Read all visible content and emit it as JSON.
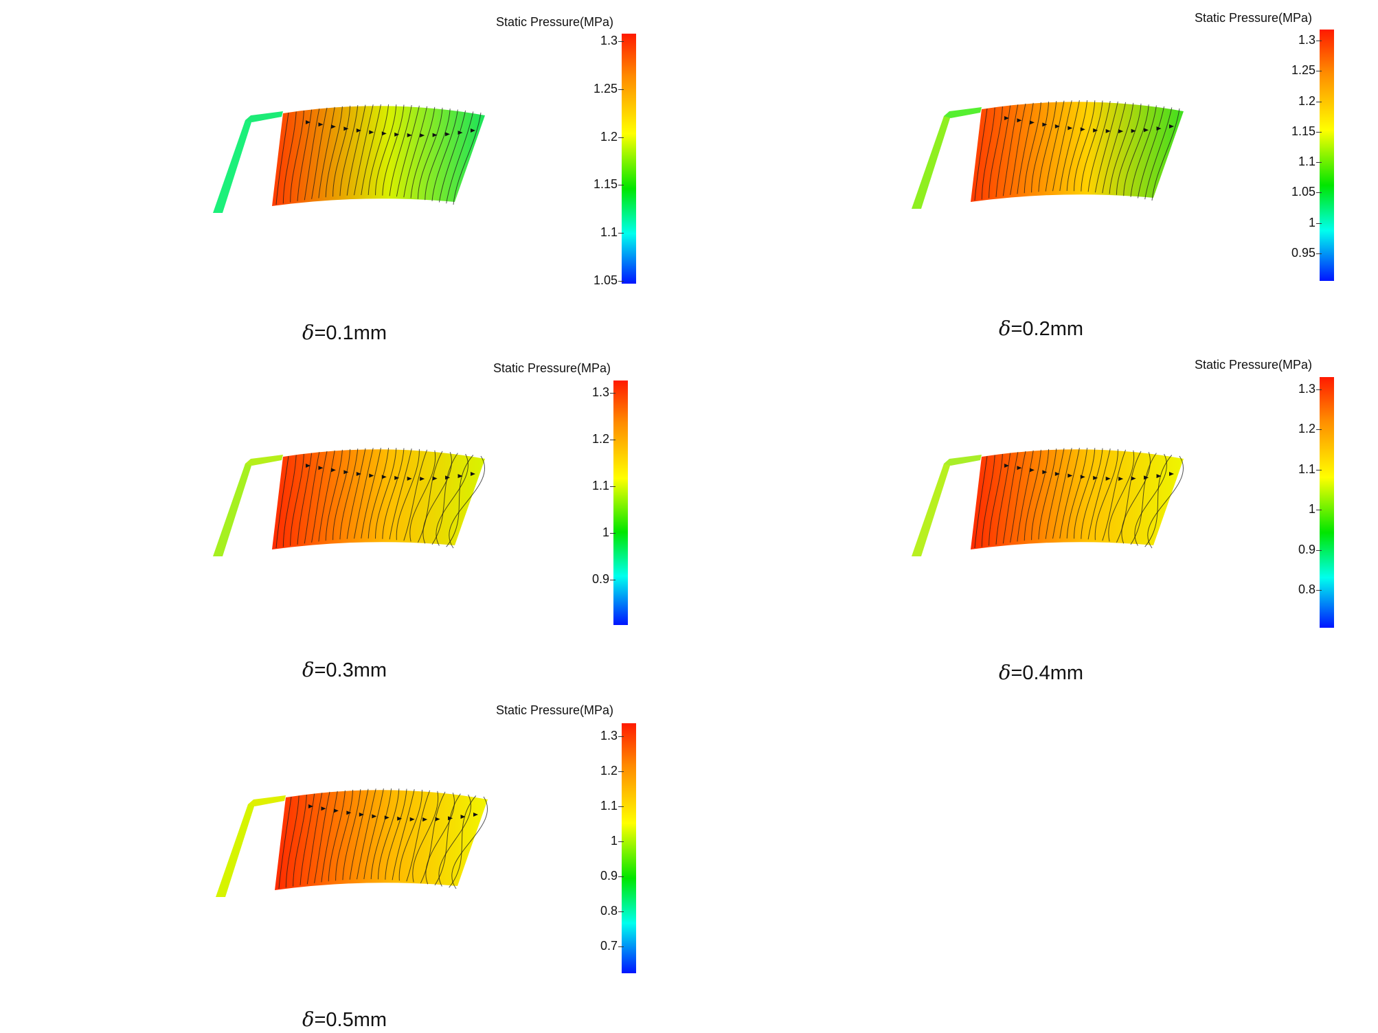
{
  "panels": [
    {
      "caption_symbol": "δ",
      "caption_value": "=0.1mm",
      "colorbar_title": "Static Pressure(MPa)",
      "colorbar_ticks": [
        "1.3",
        "1.25",
        "1.2",
        "1.15",
        "1.1",
        "1.05"
      ],
      "colors": {
        "inlet": "#1cf07a",
        "left": "#ff3a00",
        "mid": "#d8f000",
        "right": "#19e35a",
        "guide": "#1ceb76"
      }
    },
    {
      "caption_symbol": "δ",
      "caption_value": "=0.2mm",
      "colorbar_title": "Static Pressure(MPa)",
      "colorbar_ticks": [
        "1.3",
        "1.25",
        "1.2",
        "1.15",
        "1.1",
        "1.05",
        "1",
        "0.95"
      ],
      "colors": {
        "inlet": "#8fef20",
        "left": "#ff3a00",
        "mid": "#ffd200",
        "right": "#3fdf1f",
        "guide": "#55ef30"
      }
    },
    {
      "caption_symbol": "δ",
      "caption_value": "=0.3mm",
      "colorbar_title": "Static Pressure(MPa)",
      "colorbar_ticks": [
        "1.3",
        "1.2",
        "1.1",
        "1",
        "0.9"
      ],
      "colors": {
        "inlet": "#a6f020",
        "left": "#ff2a00",
        "mid": "#ffbe00",
        "right": "#d8f400",
        "guide": "#b6ef1a"
      }
    },
    {
      "caption_symbol": "δ",
      "caption_value": "=0.4mm",
      "colorbar_title": "Static Pressure(MPa)",
      "colorbar_ticks": [
        "1.3",
        "1.2",
        "1.1",
        "1",
        "0.9",
        "0.8"
      ],
      "colors": {
        "inlet": "#b8f020",
        "left": "#ff2a00",
        "mid": "#ffc200",
        "right": "#eef600",
        "guide": "#a9ee28"
      }
    },
    {
      "caption_symbol": "δ",
      "caption_value": "=0.5mm",
      "colorbar_title": "Static Pressure(MPa)",
      "colorbar_ticks": [
        "1.3",
        "1.2",
        "1.1",
        "1",
        "0.9",
        "0.8",
        "0.7"
      ],
      "colors": {
        "inlet": "#d6f400",
        "left": "#ff2a00",
        "mid": "#ffb800",
        "right": "#f2f600",
        "guide": "#dff000"
      }
    }
  ]
}
